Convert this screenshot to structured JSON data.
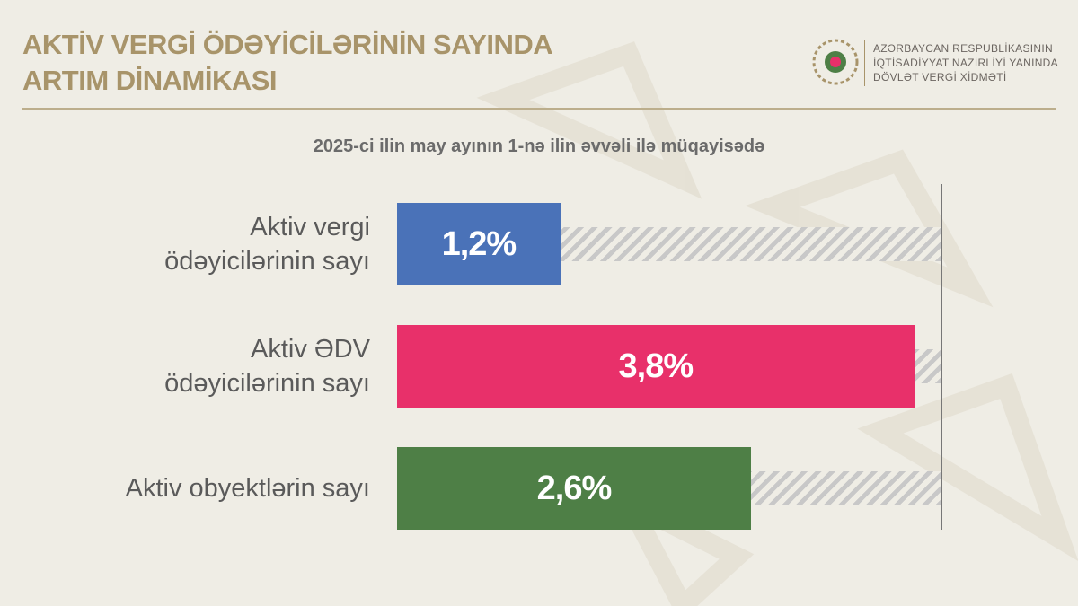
{
  "header": {
    "organization": [
      "AZƏRBAYCAN RESPUBLİKASININ",
      "İQTİSADİYYAT NAZİRLİYİ YANINDA",
      "DÖVLƏT VERGİ XİDMƏTİ"
    ]
  },
  "chart_data": {
    "type": "bar",
    "orientation": "horizontal",
    "title": "AKTİV VERGİ ÖDƏYİCİLƏRİNİN SAYINDA ARTIM DİNAMİKASI",
    "subtitle": "2025-ci ilin may ayının 1-nə ilin əvvəli ilə müqayisədə",
    "categories": [
      "Aktiv vergi ödəyicilərinin sayı",
      "Aktiv ƏDV ödəyicilərinin sayı",
      "Aktiv obyektlərin sayı"
    ],
    "values": [
      1.2,
      3.8,
      2.6
    ],
    "value_labels": [
      "1,2%",
      "3,8%",
      "2,6%"
    ],
    "colors": [
      "#4a72b8",
      "#e8306a",
      "#4e7f46"
    ],
    "xlim": [
      0,
      4
    ]
  }
}
